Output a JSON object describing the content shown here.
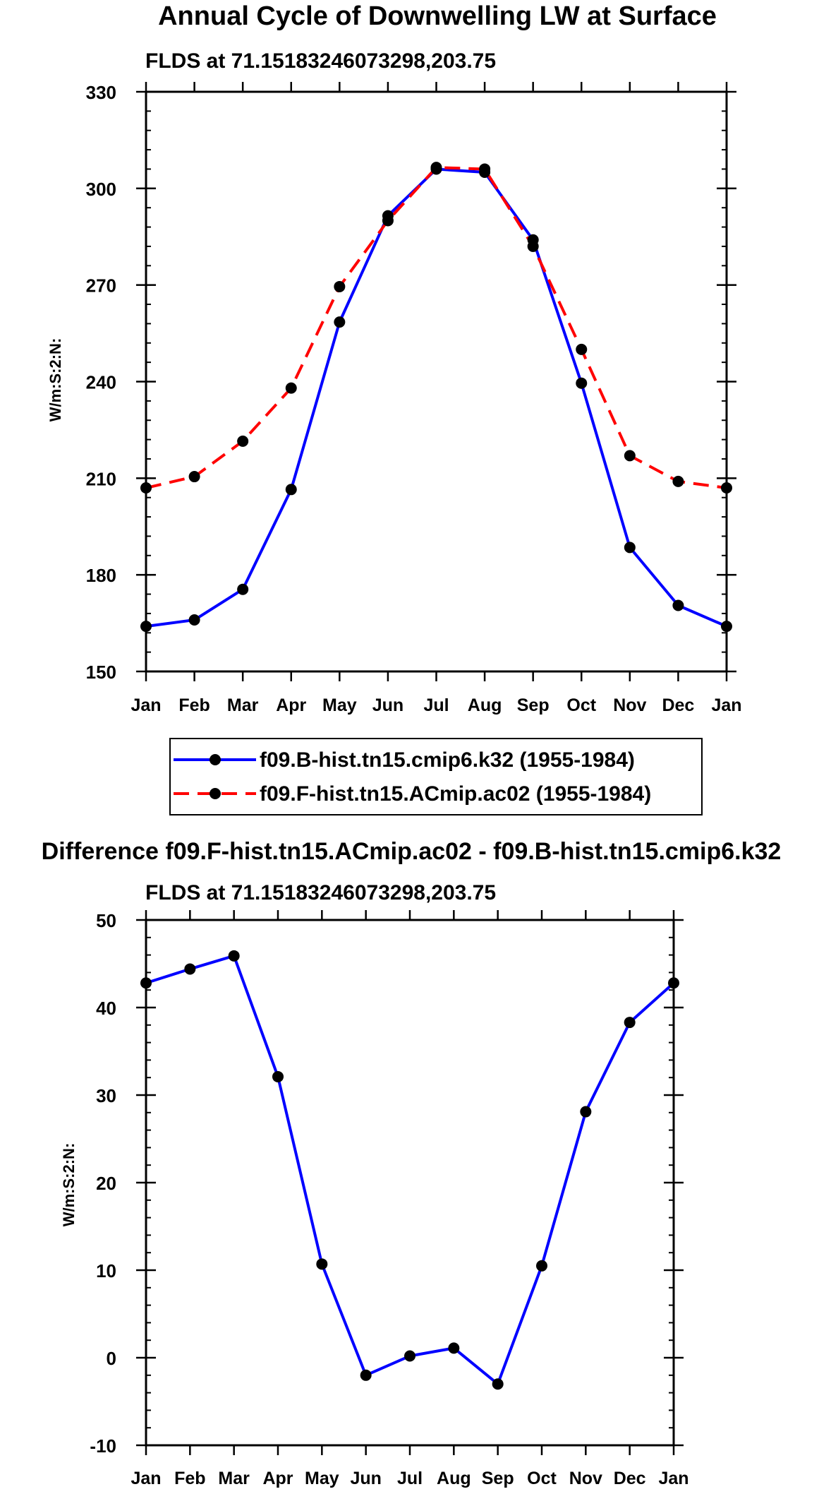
{
  "chart_data": [
    {
      "type": "line",
      "title": "Annual Cycle of Downwelling LW at Surface",
      "subtitle": "FLDS at 71.15183246073298,203.75",
      "xlabel": "",
      "ylabel": "W/m:S:2:N:",
      "categories": [
        "Jan",
        "Feb",
        "Mar",
        "Apr",
        "May",
        "Jun",
        "Jul",
        "Aug",
        "Sep",
        "Oct",
        "Nov",
        "Dec",
        "Jan"
      ],
      "yticks": [
        "150",
        "180",
        "210",
        "240",
        "270",
        "300",
        "330"
      ],
      "ylim": [
        150,
        330
      ],
      "series": [
        {
          "name": "f09.B-hist.tn15.cmip6.k32 (1955-1984)",
          "color": "#0000ff",
          "dash": "solid",
          "values": [
            164,
            166,
            175.5,
            206.5,
            258.5,
            291.5,
            306,
            305,
            284,
            239.5,
            188.5,
            170.5,
            164
          ]
        },
        {
          "name": "f09.F-hist.tn15.ACmip.ac02 (1955-1984)",
          "color": "#ff0000",
          "dash": "dashed",
          "values": [
            207,
            210.5,
            221.5,
            238,
            269.5,
            290,
            306.5,
            306,
            282,
            250,
            217,
            209,
            207
          ]
        }
      ],
      "legend": "bottom"
    },
    {
      "type": "line",
      "title": "Difference f09.F-hist.tn15.ACmip.ac02 - f09.B-hist.tn15.cmip6.k32",
      "subtitle": "FLDS at 71.15183246073298,203.75",
      "xlabel": "",
      "ylabel": "W/m:S:2:N:",
      "categories": [
        "Jan",
        "Feb",
        "Mar",
        "Apr",
        "May",
        "Jun",
        "Jul",
        "Aug",
        "Sep",
        "Oct",
        "Nov",
        "Dec",
        "Jan"
      ],
      "yticks": [
        "-10",
        "0",
        "10",
        "20",
        "30",
        "40",
        "50"
      ],
      "ylim": [
        -10,
        50
      ],
      "series": [
        {
          "name": "difference",
          "color": "#0000ff",
          "dash": "solid",
          "values": [
            42.8,
            44.4,
            45.9,
            32.1,
            10.7,
            -2,
            0.2,
            1.1,
            -3,
            10.5,
            28.1,
            38.3,
            42.8
          ]
        }
      ]
    }
  ]
}
